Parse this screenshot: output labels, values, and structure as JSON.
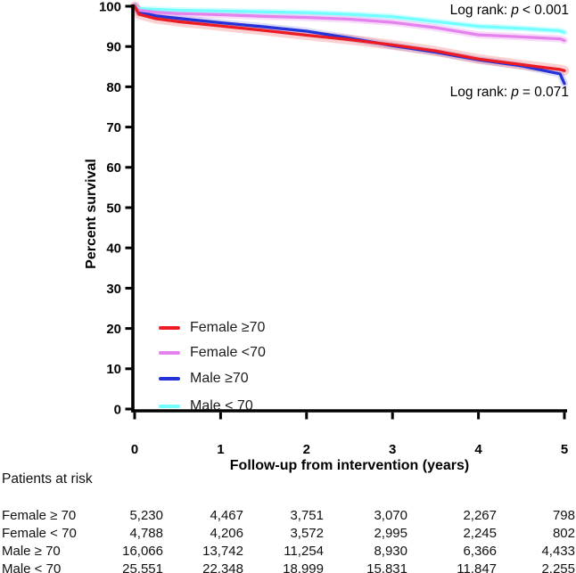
{
  "chart_data": {
    "type": "line",
    "subtype": "kaplan-meier-survival",
    "title": "",
    "xlabel": "Follow-up from intervention (years)",
    "ylabel": "Percent survival",
    "xlim": [
      0,
      5
    ],
    "ylim": [
      0,
      100
    ],
    "xticks": [
      "0",
      "1",
      "2",
      "3",
      "4",
      "5"
    ],
    "yticks": [
      "0",
      "10",
      "20",
      "30",
      "40",
      "50",
      "60",
      "70",
      "80",
      "90",
      "100"
    ],
    "grid": false,
    "legend_position": "inside lower-left",
    "x": [
      0,
      0.05,
      0.25,
      0.5,
      1,
      1.5,
      2,
      2.5,
      3,
      3.5,
      4,
      4.5,
      4.95,
      5
    ],
    "series": [
      {
        "name": "Female ≥70",
        "color": "#ed1c24",
        "band_width": 11,
        "band_opacity": 0.2,
        "values": [
          100,
          98.0,
          96.9,
          96.2,
          95.1,
          94.0,
          92.8,
          91.7,
          90.4,
          88.9,
          86.9,
          85.5,
          84.3,
          84.0
        ]
      },
      {
        "name": "Female <70",
        "color": "#e583ee",
        "band_width": 8,
        "band_opacity": 0.28,
        "values": [
          100,
          99.0,
          98.5,
          98.2,
          97.9,
          97.5,
          97.2,
          96.8,
          96.0,
          94.7,
          92.9,
          92.4,
          91.9,
          91.5
        ]
      },
      {
        "name": "Male ≥70",
        "color": "#2433d9",
        "band_width": 8,
        "band_opacity": 0.16,
        "values": [
          100,
          98.5,
          97.6,
          97.0,
          95.9,
          94.9,
          93.8,
          92.1,
          90.2,
          88.6,
          86.7,
          85.2,
          83.2,
          80.8
        ]
      },
      {
        "name": "Male < 70",
        "color": "#73ffff",
        "band_width": 7,
        "band_opacity": 0.3,
        "values": [
          100,
          99.4,
          99.2,
          99.0,
          98.8,
          98.6,
          98.4,
          98.0,
          97.4,
          96.2,
          95.0,
          94.5,
          93.9,
          93.5
        ]
      }
    ],
    "annotations": [
      {
        "label": "Log rank:",
        "pvar": "p",
        "value": "< 0.001"
      },
      {
        "label": "Log rank:",
        "pvar": "p",
        "value": "= 0.071"
      }
    ]
  },
  "risk_table": {
    "title": "Patients at risk",
    "rows": [
      {
        "label": "Female ≥ 70",
        "values": [
          "5,230",
          "4,467",
          "3,751",
          "3,070",
          "2,267",
          "798"
        ]
      },
      {
        "label": "Female < 70",
        "values": [
          "4,788",
          "4,206",
          "3,572",
          "2,995",
          "2,245",
          "802"
        ]
      },
      {
        "label": "Male ≥ 70",
        "values": [
          "16,066",
          "13,742",
          "11,254",
          "8,930",
          "6,366",
          "4,433"
        ]
      },
      {
        "label": "Male < 70",
        "values": [
          "25,551",
          "22,348",
          "18,999",
          "15,831",
          "11,847",
          "2,255"
        ]
      }
    ]
  }
}
